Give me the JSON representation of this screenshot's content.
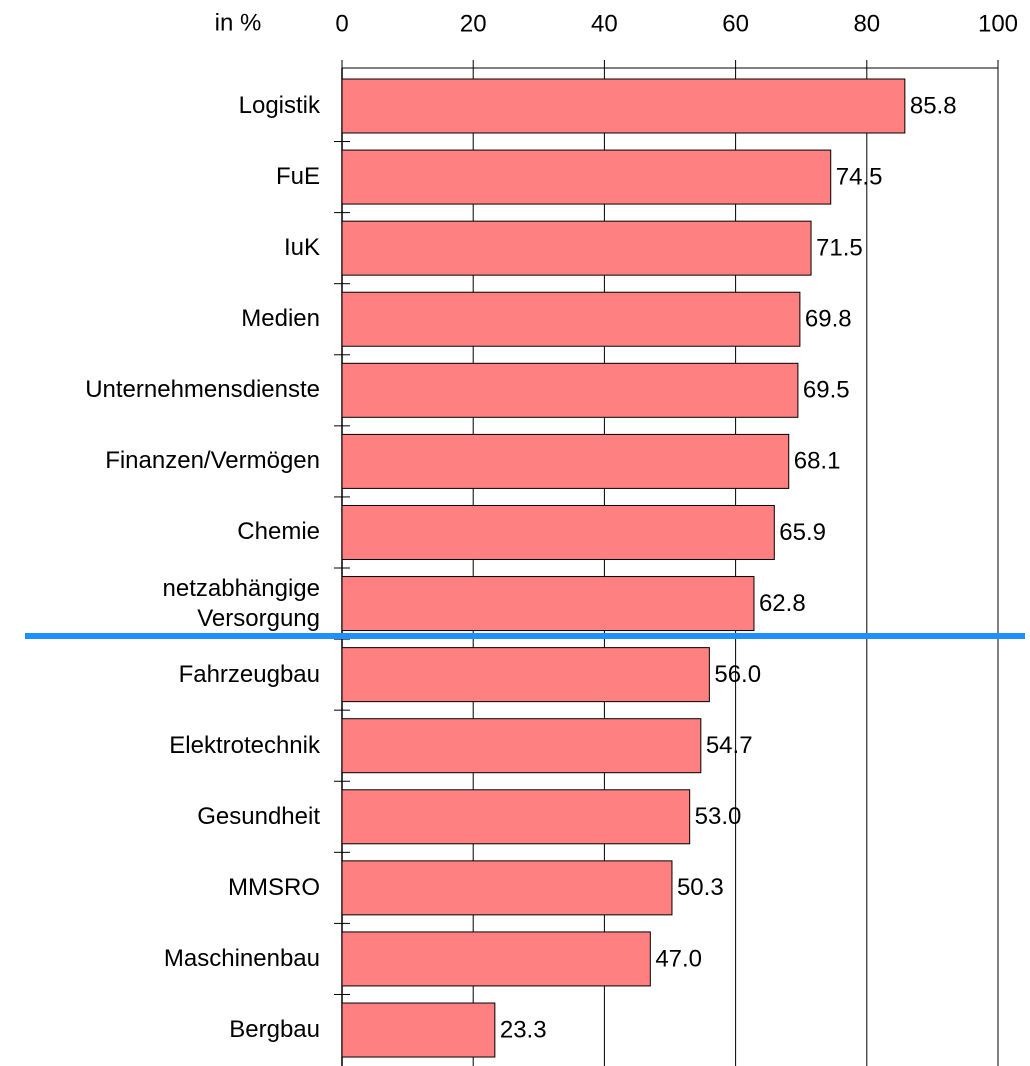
{
  "chart_data": {
    "type": "bar",
    "orientation": "horizontal",
    "axis_label": "in %",
    "categories": [
      "Logistik",
      "FuE",
      "IuK",
      "Medien",
      "Unternehmensdienste",
      "Finanzen/Vermögen",
      "Chemie",
      "netzabhängige\nVersorgung",
      "Fahrzeugbau",
      "Elektrotechnik",
      "Gesundheit",
      "MMSRO",
      "Maschinenbau",
      "Bergbau"
    ],
    "values": [
      85.8,
      74.5,
      71.5,
      69.8,
      69.5,
      68.1,
      65.9,
      62.8,
      56.0,
      54.7,
      53.0,
      50.3,
      47.0,
      23.3
    ],
    "value_labels": [
      "85.8",
      "74.5",
      "71.5",
      "69.8",
      "69.5",
      "68.1",
      "65.9",
      "62.8",
      "56.0",
      "54.7",
      "53.0",
      "50.3",
      "47.0",
      "23.3"
    ],
    "color": "#ff8080",
    "xlim": [
      0,
      100
    ],
    "xticks": [
      0,
      20,
      40,
      60,
      80,
      100
    ],
    "grid": true
  }
}
